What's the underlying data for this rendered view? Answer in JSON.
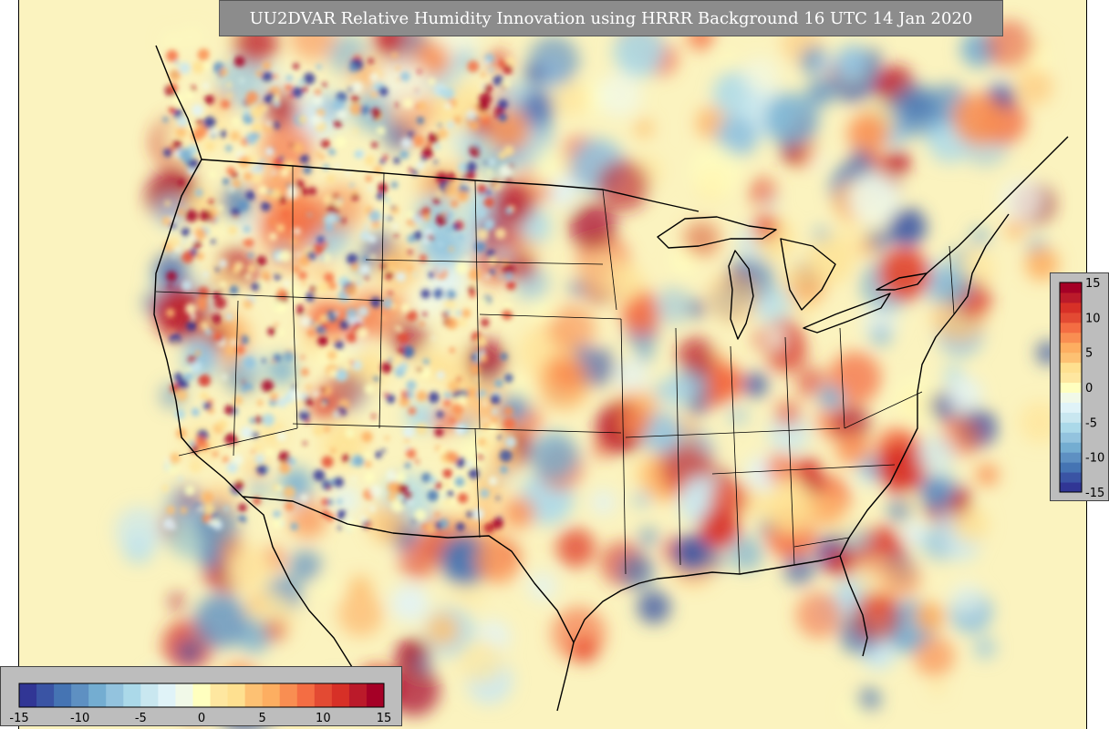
{
  "title": "UU2DVAR Relative Humidity Innovation using HRRR Background 16 UTC 14 Jan 2020",
  "colorbar": {
    "min": -15,
    "max": 15,
    "vertical_ticks": [
      "15",
      "10",
      "5",
      "0",
      "-5",
      "-10",
      "-15"
    ],
    "horizontal_ticks": [
      "-15",
      "-10",
      "-5",
      "0",
      "5",
      "10",
      "15"
    ],
    "colors": [
      "#313695",
      "#3a54a4",
      "#4574b3",
      "#5e90c2",
      "#74add1",
      "#93c3de",
      "#abd9e9",
      "#c9e7f0",
      "#e0f3f8",
      "#f1f9e8",
      "#ffffbf",
      "#fee7a0",
      "#fee090",
      "#fdc173",
      "#fdae61",
      "#f98e52",
      "#f46d43",
      "#e34a33",
      "#d73027",
      "#bb1a2a",
      "#a50026"
    ]
  },
  "map": {
    "background_color": "#fbf3bf",
    "region": "Contiguous United States and surrounding areas"
  }
}
